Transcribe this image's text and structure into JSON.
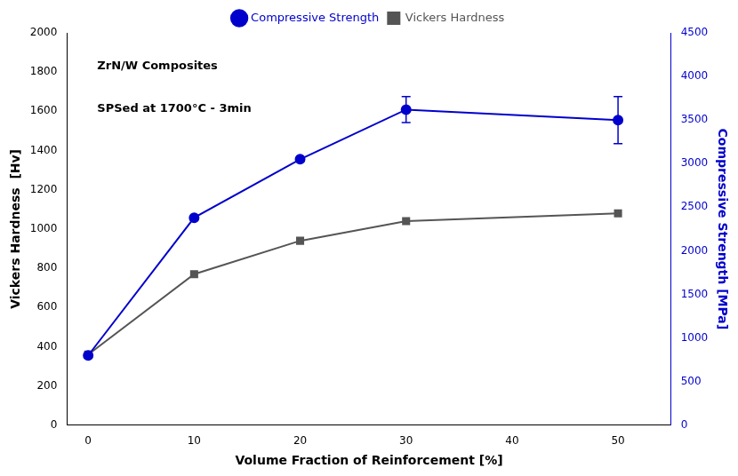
{
  "chart_data": {
    "type": "line",
    "x": [
      0,
      10,
      20,
      30,
      50
    ],
    "xlabel": "Volume Fraction of Reinforcement [%]",
    "ylabel": "Vickers Hardness  [Hv]",
    "y2label": "Compressive Strength [MPa]",
    "annotations": [
      "ZrN/W Composites",
      "SPSed at 1700°C - 3min"
    ],
    "xlim": [
      -2,
      55
    ],
    "xticks": [
      0,
      10,
      20,
      30,
      40,
      50
    ],
    "ylim": [
      0,
      2000
    ],
    "yticks": [
      0,
      200,
      400,
      600,
      800,
      1000,
      1200,
      1400,
      1600,
      1800,
      2000
    ],
    "y2lim": [
      0,
      4500
    ],
    "y2ticks": [
      0,
      500,
      1000,
      1500,
      2000,
      2500,
      3000,
      3500,
      4000,
      4500
    ],
    "grid": false,
    "legend": "upper center",
    "series": [
      {
        "name": "Compressive Strength",
        "color": "#0000cc",
        "axis": "y2",
        "marker": "circle",
        "line_style": "solid",
        "values": [
          800,
          2380,
          3050,
          3620,
          3500
        ],
        "error_upper": [
          0,
          0,
          0,
          150,
          270
        ],
        "error_lower": [
          0,
          0,
          0,
          150,
          270
        ]
      },
      {
        "name": "Vickers Hardness",
        "color": "#555555",
        "axis": "y",
        "marker": "square",
        "line_style": "solid",
        "values": [
          360,
          770,
          940,
          1040,
          1080
        ]
      }
    ]
  }
}
